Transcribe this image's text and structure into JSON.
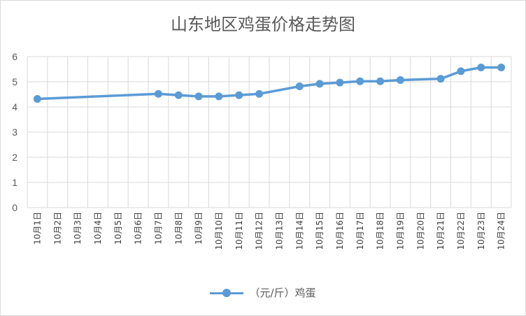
{
  "chart_data": {
    "type": "line",
    "title": "山东地区鸡蛋价格走势图",
    "xlabel": "",
    "ylabel": "",
    "ylim": [
      0,
      6
    ],
    "yticks": [
      "0",
      "1",
      "2",
      "3",
      "4",
      "5",
      "6"
    ],
    "grid": true,
    "legend_position": "bottom",
    "categories": [
      "10月1日",
      "10月2日",
      "10月3日",
      "10月4日",
      "10月5日",
      "10月6日",
      "10月7日",
      "10月8日",
      "10月9日",
      "10月10日",
      "10月11日",
      "10月12日",
      "10月13日",
      "10月14日",
      "10月15日",
      "10月16日",
      "10月17日",
      "10月18日",
      "10月19日",
      "10月20日",
      "10月21日",
      "10月22日",
      "10月23日",
      "10月24日"
    ],
    "series": [
      {
        "name": "（元/斤）鸡蛋",
        "color": "#5b9bd5",
        "values": [
          4.32,
          null,
          null,
          null,
          null,
          null,
          4.52,
          4.47,
          4.42,
          4.42,
          4.47,
          4.52,
          null,
          4.82,
          4.92,
          4.97,
          5.02,
          5.02,
          5.07,
          null,
          5.12,
          5.42,
          5.57,
          5.57
        ]
      }
    ]
  }
}
